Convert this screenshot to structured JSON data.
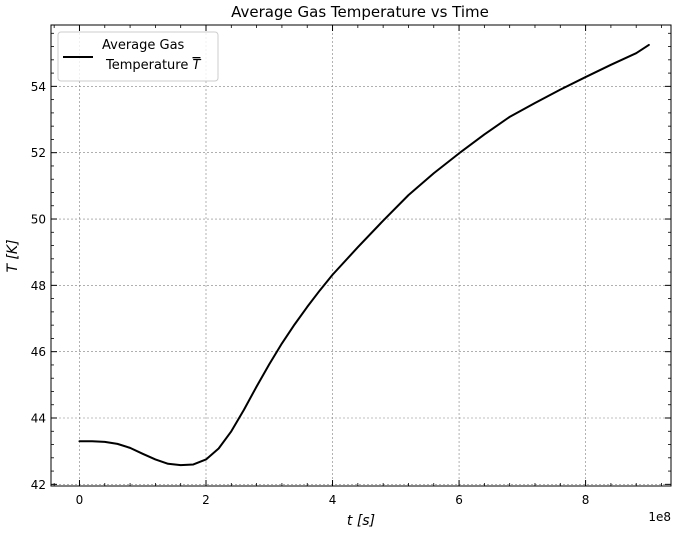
{
  "chart_data": {
    "type": "line",
    "title": "Average Gas Temperature vs Time",
    "xlabel": "t [s]",
    "ylabel": "T [K]",
    "x_offset_label": "1e8",
    "xlim": [
      -0.45,
      9.35
    ],
    "ylim": [
      41.95,
      55.85
    ],
    "x_ticks": [
      0,
      2,
      4,
      6,
      8
    ],
    "x_tick_labels": [
      "0",
      "2",
      "4",
      "6",
      "8"
    ],
    "y_ticks": [
      42,
      44,
      46,
      48,
      50,
      52,
      54
    ],
    "y_tick_labels": [
      "42",
      "44",
      "46",
      "48",
      "50",
      "52",
      "54"
    ],
    "grid": true,
    "legend_position": "top-left",
    "series": [
      {
        "name": "Average Gas Temperature T̅",
        "legend_lines": [
          "Average Gas",
          "Temperature"
        ],
        "legend_symbol": "T",
        "color": "#000000",
        "x": [
          0,
          0.2,
          0.4,
          0.6,
          0.8,
          1.0,
          1.2,
          1.4,
          1.6,
          1.8,
          2.0,
          2.2,
          2.4,
          2.6,
          2.8,
          3.0,
          3.2,
          3.4,
          3.6,
          3.8,
          4.0,
          4.4,
          4.8,
          5.2,
          5.6,
          6.0,
          6.4,
          6.8,
          7.2,
          7.6,
          8.0,
          8.4,
          8.8,
          9.0
        ],
        "y": [
          43.3,
          43.3,
          43.28,
          43.22,
          43.1,
          42.92,
          42.75,
          42.62,
          42.58,
          42.6,
          42.75,
          43.08,
          43.6,
          44.25,
          44.95,
          45.62,
          46.25,
          46.82,
          47.35,
          47.85,
          48.32,
          49.15,
          49.95,
          50.72,
          51.38,
          51.98,
          52.55,
          53.08,
          53.5,
          53.9,
          54.28,
          54.65,
          55.0,
          55.25
        ]
      }
    ]
  }
}
